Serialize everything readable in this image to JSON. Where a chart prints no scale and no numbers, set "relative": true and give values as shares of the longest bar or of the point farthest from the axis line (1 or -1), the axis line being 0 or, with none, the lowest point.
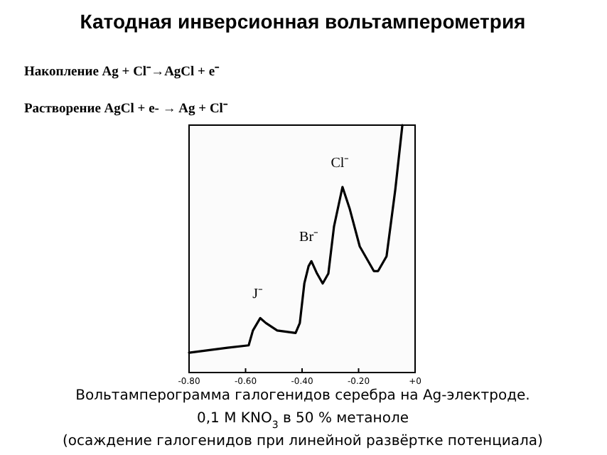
{
  "chart_data": {
    "type": "line",
    "title": "Катодная инверсионная вольтамперометрия",
    "relative": true,
    "x": [
      -0.8,
      -0.664,
      -0.589,
      -0.574,
      -0.548,
      -0.528,
      -0.488,
      -0.423,
      -0.408,
      -0.392,
      -0.377,
      -0.367,
      -0.347,
      -0.327,
      -0.307,
      -0.287,
      -0.257,
      -0.231,
      -0.196,
      -0.146,
      -0.131,
      -0.101,
      -0.07,
      -0.045
    ],
    "series": [
      {
        "color": "#000000",
        "values": [
          0.08,
          0.1,
          0.11,
          0.17,
          0.22,
          0.2,
          0.17,
          0.16,
          0.2,
          0.36,
          0.43,
          0.45,
          0.4,
          0.36,
          0.4,
          0.59,
          0.75,
          0.66,
          0.51,
          0.41,
          0.41,
          0.47,
          0.74,
          1.0
        ]
      }
    ],
    "xlim": [
      -0.8,
      0
    ],
    "xticks": [
      {
        "value": -0.8,
        "label": "-0.80"
      },
      {
        "value": -0.6,
        "label": "-0.60"
      },
      {
        "value": -0.4,
        "label": "-0.40"
      },
      {
        "value": -0.2,
        "label": "-0.20"
      },
      {
        "value": 0,
        "label": "+0"
      }
    ],
    "annotations": [
      "Накопление  Ag + Cl⁻→AgCl + e⁻",
      "Растворение AgCl + e- → Ag + Cl⁻",
      "Вольтамперограмма галогенидов серебра на Ag-электроде.",
      "0,1 M KNO$_{3}$  в 50 % метаноле",
      "(осаждение галогенидов при линейной развёртке потенциала)",
      {
        "text": "J⁻",
        "x": -0.548,
        "y": 0.22
      },
      {
        "text": "Br⁻",
        "x": -0.367,
        "y": 0.45
      },
      {
        "text": "Cl⁻",
        "x": -0.257,
        "y": 0.75
      }
    ],
    "grid": false,
    "marker": "none",
    "line_style": "solid"
  }
}
